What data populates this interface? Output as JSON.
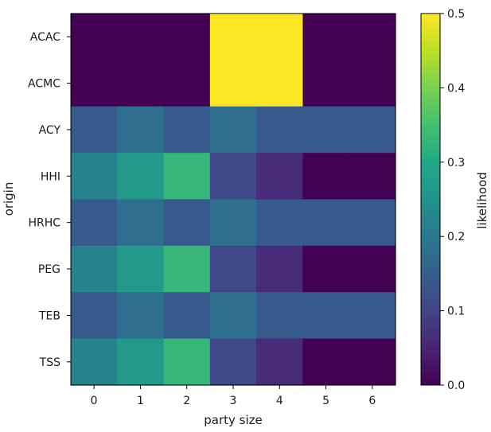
{
  "chart_data": {
    "type": "heatmap",
    "title": "",
    "xlabel": "party size",
    "ylabel": "origin",
    "x_categories": [
      "0",
      "1",
      "2",
      "3",
      "4",
      "5",
      "6"
    ],
    "y_categories": [
      "ACAC",
      "ACMC",
      "ACY",
      "HHI",
      "HRHC",
      "PEG",
      "TEB",
      "TSS"
    ],
    "values": [
      [
        0.0,
        0.0,
        0.0,
        0.5,
        0.5,
        0.0,
        0.0
      ],
      [
        0.0,
        0.0,
        0.0,
        0.5,
        0.5,
        0.0,
        0.0
      ],
      [
        0.14,
        0.18,
        0.14,
        0.18,
        0.14,
        0.14,
        0.14
      ],
      [
        0.22,
        0.27,
        0.33,
        0.11,
        0.06,
        0.0,
        0.0
      ],
      [
        0.14,
        0.18,
        0.14,
        0.18,
        0.14,
        0.14,
        0.14
      ],
      [
        0.22,
        0.27,
        0.33,
        0.11,
        0.06,
        0.0,
        0.0
      ],
      [
        0.14,
        0.18,
        0.14,
        0.18,
        0.14,
        0.14,
        0.14
      ],
      [
        0.22,
        0.27,
        0.33,
        0.11,
        0.06,
        0.0,
        0.0
      ]
    ],
    "colorbar": {
      "label": "likelihood",
      "range": [
        0.0,
        0.5
      ],
      "ticks": [
        0.0,
        0.1,
        0.2,
        0.3,
        0.4,
        0.5
      ],
      "tick_labels": [
        "0.0",
        "0.1",
        "0.2",
        "0.3",
        "0.4",
        "0.5"
      ],
      "colormap": "viridis"
    },
    "grid": false
  }
}
